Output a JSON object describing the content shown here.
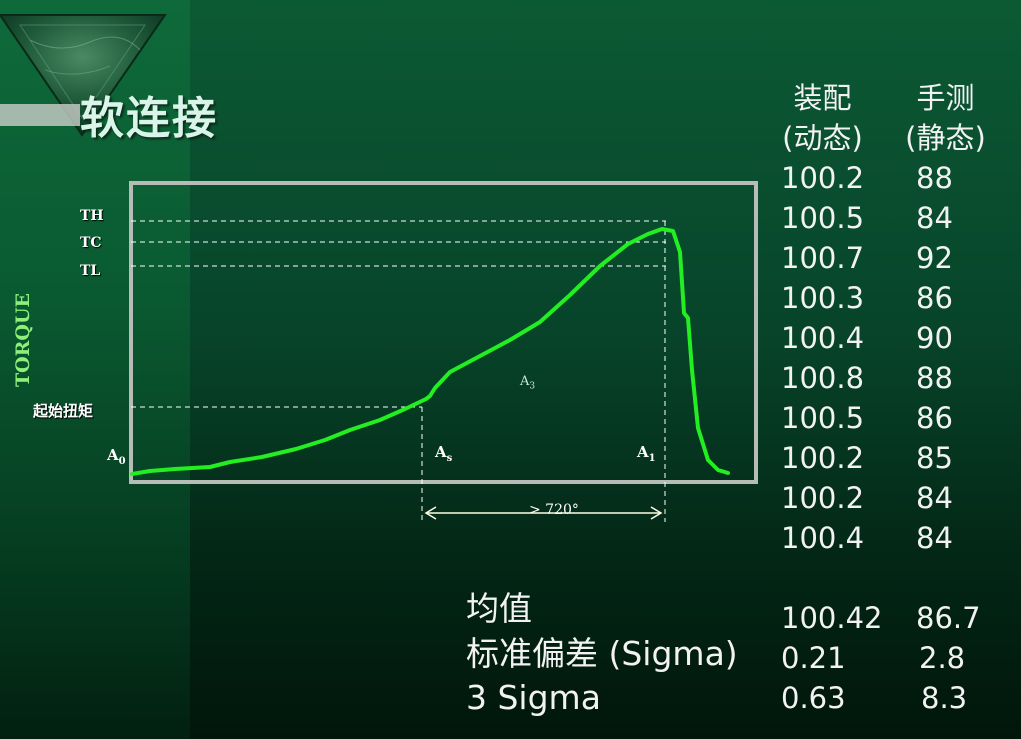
{
  "title": "软连接",
  "diagram": {
    "y_axis_label": "TORQUE",
    "levels": [
      "TH",
      "TC",
      "TL"
    ],
    "start_torque_label": "起始扭矩",
    "point_labels": {
      "a0": {
        "base": "A",
        "sub": "0"
      },
      "as": {
        "base": "A",
        "sub": "s"
      },
      "a1": {
        "base": "A",
        "sub": "1"
      },
      "a3": {
        "base": "A",
        "sub": "3"
      }
    },
    "angle_label": "> 720°",
    "colors": {
      "curve": "#22ee22",
      "frame": "#c0c0c0",
      "guide": "#ffffff"
    }
  },
  "table": {
    "col1_header_line1": "装配",
    "col1_header_line2": "(动态)",
    "col2_header_line1": "手测",
    "col2_header_line2": "(静态)",
    "col1_values": [
      "100.2",
      "100.5",
      "100.7",
      "100.3",
      "100.4",
      "100.8",
      "100.5",
      "100.2",
      "100.2",
      "100.4"
    ],
    "col2_values": [
      "88",
      "84",
      "92",
      "86",
      "90",
      "88",
      "86",
      "85",
      "84",
      "84"
    ]
  },
  "stats": {
    "labels": [
      "均值",
      "标准偏差 (Sigma)",
      "3 Sigma"
    ],
    "col1": [
      "100.42",
      "0.21",
      "0.63"
    ],
    "col2": [
      "86.7",
      "2.8",
      "8.3"
    ]
  }
}
